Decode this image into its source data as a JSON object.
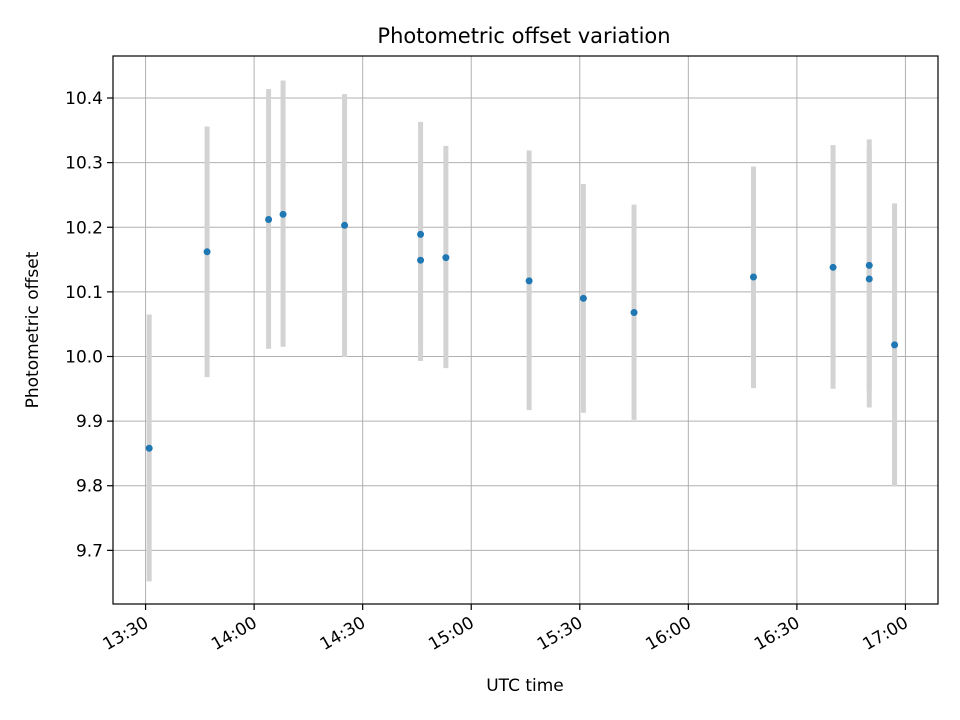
{
  "chart_data": {
    "type": "scatter",
    "title": "Photometric offset variation",
    "xlabel": "UTC time",
    "ylabel": "Photometric offset",
    "x_tick_labels": [
      "13:30",
      "14:00",
      "14:30",
      "15:00",
      "15:30",
      "16:00",
      "16:30",
      "17:00"
    ],
    "x_ticks": [
      "13:30",
      "14:00",
      "14:30",
      "15:00",
      "15:30",
      "16:00",
      "16:30",
      "17:00"
    ],
    "y_ticks": [
      9.7,
      9.8,
      9.9,
      10.0,
      10.1,
      10.2,
      10.3,
      10.4
    ],
    "y_tick_labels": [
      "9.7",
      "9.8",
      "9.9",
      "10.0",
      "10.1",
      "10.2",
      "10.3",
      "10.4"
    ],
    "xlim": [
      "13:21",
      "17:09"
    ],
    "ylim": [
      9.617,
      10.465
    ],
    "grid": true,
    "marker_color": "#1f77b4",
    "errorbar_color": "#d3d3d3",
    "points": [
      {
        "x": "13:31",
        "y": 9.858,
        "err_low": 9.652,
        "err_high": 10.065
      },
      {
        "x": "13:47",
        "y": 10.162,
        "err_low": 9.968,
        "err_high": 10.356
      },
      {
        "x": "14:04",
        "y": 10.212,
        "err_low": 10.012,
        "err_high": 10.414
      },
      {
        "x": "14:08",
        "y": 10.22,
        "err_low": 10.015,
        "err_high": 10.427
      },
      {
        "x": "14:25",
        "y": 10.203,
        "err_low": 9.999,
        "err_high": 10.406
      },
      {
        "x": "14:46",
        "y": 10.189,
        "err_low": 10.017,
        "err_high": 10.363
      },
      {
        "x": "14:46",
        "y": 10.149,
        "err_low": 9.993,
        "err_high": 10.305
      },
      {
        "x": "14:53",
        "y": 10.153,
        "err_low": 9.982,
        "err_high": 10.326
      },
      {
        "x": "15:16",
        "y": 10.117,
        "err_low": 9.917,
        "err_high": 10.319
      },
      {
        "x": "15:31",
        "y": 10.09,
        "err_low": 9.913,
        "err_high": 10.267
      },
      {
        "x": "15:45",
        "y": 10.068,
        "err_low": 9.902,
        "err_high": 10.235
      },
      {
        "x": "16:18",
        "y": 10.123,
        "err_low": 9.951,
        "err_high": 10.294
      },
      {
        "x": "16:40",
        "y": 10.138,
        "err_low": 9.95,
        "err_high": 10.327
      },
      {
        "x": "16:50",
        "y": 10.141,
        "err_low": 9.947,
        "err_high": 10.336
      },
      {
        "x": "16:50",
        "y": 10.12,
        "err_low": 9.921,
        "err_high": 10.319
      },
      {
        "x": "16:57",
        "y": 10.018,
        "err_low": 9.799,
        "err_high": 10.237
      }
    ]
  }
}
